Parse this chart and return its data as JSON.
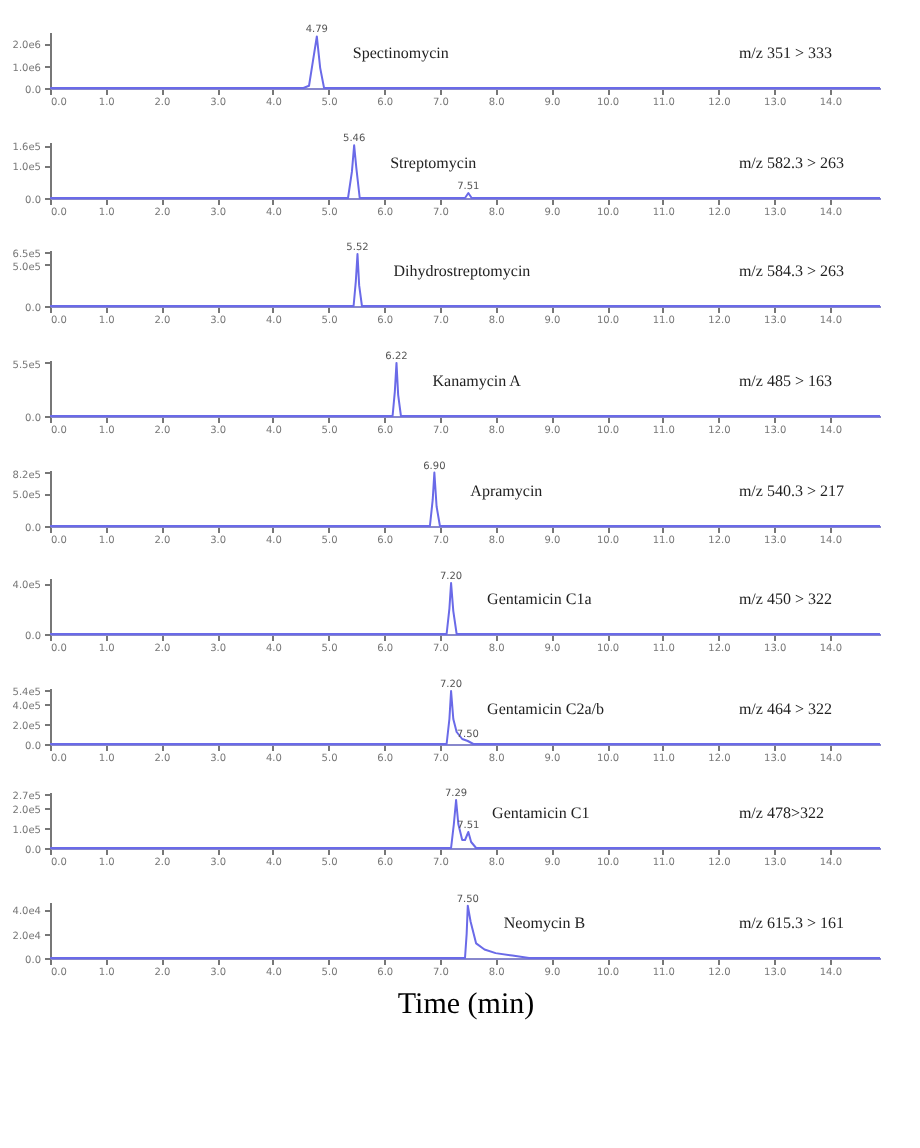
{
  "chart_data": [
    {
      "type": "line",
      "color": "#6a6ae8",
      "x": [
        0,
        4.55,
        4.65,
        4.72,
        4.79,
        4.85,
        4.92,
        14.9
      ],
      "values": [
        0,
        0,
        100000,
        1200000,
        2300000,
        900000,
        0,
        0
      ],
      "xlim": [
        0,
        14.9
      ],
      "xticks": [
        {
          "value": 0,
          "label": "0.0"
        },
        {
          "value": 1,
          "label": "1.0"
        },
        {
          "value": 2,
          "label": "2.0"
        },
        {
          "value": 3,
          "label": "3.0"
        },
        {
          "value": 4,
          "label": "4.0"
        },
        {
          "value": 5,
          "label": "5.0"
        },
        {
          "value": 6,
          "label": "6.0"
        },
        {
          "value": 7,
          "label": "7.0"
        },
        {
          "value": 8,
          "label": "8.0"
        },
        {
          "value": 9,
          "label": "9.0"
        },
        {
          "value": 10,
          "label": "10.0"
        },
        {
          "value": 11,
          "label": "11.0"
        },
        {
          "value": 12,
          "label": "12.0"
        },
        {
          "value": 13,
          "label": "13.0"
        },
        {
          "value": 14,
          "label": "14.0"
        }
      ],
      "ylim": [
        0,
        2500000
      ],
      "yticks": [
        {
          "value": 0,
          "label": "0.0"
        },
        {
          "value": 1000000,
          "label": "1.0e6"
        },
        {
          "value": 2000000,
          "label": "2.0e6"
        }
      ],
      "annotations": [
        "Spectinomycin",
        "m/z 351 > 333",
        {
          "text": "4.79",
          "x": 4.79,
          "y": 2300000
        }
      ]
    },
    {
      "type": "line",
      "color": "#6a6ae8",
      "x": [
        0,
        5.35,
        5.42,
        5.46,
        5.5,
        5.56,
        7.45,
        7.51,
        7.57,
        14.9
      ],
      "values": [
        0,
        0,
        80000,
        160000,
        90000,
        0,
        0,
        15000,
        0,
        0
      ],
      "xlim": [
        0,
        14.9
      ],
      "xticks": [
        {
          "value": 0,
          "label": "0.0"
        },
        {
          "value": 1,
          "label": "1.0"
        },
        {
          "value": 2,
          "label": "2.0"
        },
        {
          "value": 3,
          "label": "3.0"
        },
        {
          "value": 4,
          "label": "4.0"
        },
        {
          "value": 5,
          "label": "5.0"
        },
        {
          "value": 6,
          "label": "6.0"
        },
        {
          "value": 7,
          "label": "7.0"
        },
        {
          "value": 8,
          "label": "8.0"
        },
        {
          "value": 9,
          "label": "9.0"
        },
        {
          "value": 10,
          "label": "10.0"
        },
        {
          "value": 11,
          "label": "11.0"
        },
        {
          "value": 12,
          "label": "12.0"
        },
        {
          "value": 13,
          "label": "13.0"
        },
        {
          "value": 14,
          "label": "14.0"
        }
      ],
      "ylim": [
        0,
        170000
      ],
      "yticks": [
        {
          "value": 0,
          "label": "0.0"
        },
        {
          "value": 100000,
          "label": "1.0e5"
        },
        {
          "value": 160000,
          "label": "1.6e5"
        }
      ],
      "annotations": [
        "Streptomycin",
        "m/z 582.3 > 263",
        {
          "text": "5.46",
          "x": 5.46,
          "y": 160000
        },
        {
          "text": "7.51",
          "x": 7.51,
          "y": 15000
        }
      ]
    },
    {
      "type": "line",
      "color": "#6a6ae8",
      "x": [
        0,
        5.45,
        5.49,
        5.52,
        5.55,
        5.6,
        14.9
      ],
      "values": [
        0,
        0,
        300000,
        630000,
        250000,
        0,
        0
      ],
      "xlim": [
        0,
        14.9
      ],
      "xticks": [
        {
          "value": 0,
          "label": "0.0"
        },
        {
          "value": 1,
          "label": "1.0"
        },
        {
          "value": 2,
          "label": "2.0"
        },
        {
          "value": 3,
          "label": "3.0"
        },
        {
          "value": 4,
          "label": "4.0"
        },
        {
          "value": 5,
          "label": "5.0"
        },
        {
          "value": 6,
          "label": "6.0"
        },
        {
          "value": 7,
          "label": "7.0"
        },
        {
          "value": 8,
          "label": "8.0"
        },
        {
          "value": 9,
          "label": "9.0"
        },
        {
          "value": 10,
          "label": "10.0"
        },
        {
          "value": 11,
          "label": "11.0"
        },
        {
          "value": 12,
          "label": "12.0"
        },
        {
          "value": 13,
          "label": "13.0"
        },
        {
          "value": 14,
          "label": "14.0"
        }
      ],
      "ylim": [
        0,
        680000
      ],
      "yticks": [
        {
          "value": 0,
          "label": "0.0"
        },
        {
          "value": 500000,
          "label": "5.0e5"
        },
        {
          "value": 650000,
          "label": "6.5e5"
        }
      ],
      "annotations": [
        "Dihydrostreptomycin",
        "m/z 584.3 > 263",
        {
          "text": "5.52",
          "x": 5.52,
          "y": 630000
        }
      ]
    },
    {
      "type": "line",
      "color": "#6a6ae8",
      "x": [
        0,
        6.15,
        6.19,
        6.22,
        6.25,
        6.3,
        14.9
      ],
      "values": [
        0,
        0,
        250000,
        550000,
        220000,
        0,
        0
      ],
      "xlim": [
        0,
        14.9
      ],
      "xticks": [
        {
          "value": 0,
          "label": "0.0"
        },
        {
          "value": 1,
          "label": "1.0"
        },
        {
          "value": 2,
          "label": "2.0"
        },
        {
          "value": 3,
          "label": "3.0"
        },
        {
          "value": 4,
          "label": "4.0"
        },
        {
          "value": 5,
          "label": "5.0"
        },
        {
          "value": 6,
          "label": "6.0"
        },
        {
          "value": 7,
          "label": "7.0"
        },
        {
          "value": 8,
          "label": "8.0"
        },
        {
          "value": 9,
          "label": "9.0"
        },
        {
          "value": 10,
          "label": "10.0"
        },
        {
          "value": 11,
          "label": "11.0"
        },
        {
          "value": 12,
          "label": "12.0"
        },
        {
          "value": 13,
          "label": "13.0"
        },
        {
          "value": 14,
          "label": "14.0"
        }
      ],
      "ylim": [
        0,
        580000
      ],
      "yticks": [
        {
          "value": 0,
          "label": "0.0"
        },
        {
          "value": 550000,
          "label": "5.5e5"
        }
      ],
      "annotations": [
        "Kanamycin A",
        "m/z 485 > 163",
        {
          "text": "6.22",
          "x": 6.22,
          "y": 550000
        }
      ]
    },
    {
      "type": "line",
      "color": "#6a6ae8",
      "x": [
        0,
        6.82,
        6.87,
        6.9,
        6.94,
        7.0,
        14.9
      ],
      "values": [
        0,
        0,
        400000,
        820000,
        300000,
        0,
        0
      ],
      "xlim": [
        0,
        14.9
      ],
      "xticks": [
        {
          "value": 0,
          "label": "0.0"
        },
        {
          "value": 1,
          "label": "1.0"
        },
        {
          "value": 2,
          "label": "2.0"
        },
        {
          "value": 3,
          "label": "3.0"
        },
        {
          "value": 4,
          "label": "4.0"
        },
        {
          "value": 5,
          "label": "5.0"
        },
        {
          "value": 6,
          "label": "6.0"
        },
        {
          "value": 7,
          "label": "7.0"
        },
        {
          "value": 8,
          "label": "8.0"
        },
        {
          "value": 9,
          "label": "9.0"
        },
        {
          "value": 10,
          "label": "10.0"
        },
        {
          "value": 11,
          "label": "11.0"
        },
        {
          "value": 12,
          "label": "12.0"
        },
        {
          "value": 13,
          "label": "13.0"
        },
        {
          "value": 14,
          "label": "14.0"
        }
      ],
      "ylim": [
        0,
        860000
      ],
      "yticks": [
        {
          "value": 0,
          "label": "0.0"
        },
        {
          "value": 500000,
          "label": "5.0e5"
        },
        {
          "value": 820000,
          "label": "8.2e5"
        }
      ],
      "annotations": [
        "Apramycin",
        "m/z 540.3 > 217",
        {
          "text": "6.90",
          "x": 6.9,
          "y": 820000
        }
      ]
    },
    {
      "type": "line",
      "color": "#6a6ae8",
      "x": [
        0,
        7.12,
        7.17,
        7.2,
        7.24,
        7.3,
        14.9
      ],
      "values": [
        0,
        0,
        200000,
        400000,
        180000,
        0,
        0
      ],
      "xlim": [
        0,
        14.9
      ],
      "xticks": [
        {
          "value": 0,
          "label": "0.0"
        },
        {
          "value": 1,
          "label": "1.0"
        },
        {
          "value": 2,
          "label": "2.0"
        },
        {
          "value": 3,
          "label": "3.0"
        },
        {
          "value": 4,
          "label": "4.0"
        },
        {
          "value": 5,
          "label": "5.0"
        },
        {
          "value": 6,
          "label": "6.0"
        },
        {
          "value": 7,
          "label": "7.0"
        },
        {
          "value": 8,
          "label": "8.0"
        },
        {
          "value": 9,
          "label": "9.0"
        },
        {
          "value": 10,
          "label": "10.0"
        },
        {
          "value": 11,
          "label": "11.0"
        },
        {
          "value": 12,
          "label": "12.0"
        },
        {
          "value": 13,
          "label": "13.0"
        },
        {
          "value": 14,
          "label": "14.0"
        }
      ],
      "ylim": [
        0,
        440000
      ],
      "yticks": [
        {
          "value": 0,
          "label": "0.0"
        },
        {
          "value": 400000,
          "label": "4.0e5"
        }
      ],
      "annotations": [
        "Gentamicin C1a",
        "m/z 450 > 322",
        {
          "text": "7.20",
          "x": 7.2,
          "y": 400000
        }
      ]
    },
    {
      "type": "line",
      "color": "#6a6ae8",
      "x": [
        0,
        7.12,
        7.17,
        7.2,
        7.24,
        7.3,
        7.4,
        7.5,
        7.6,
        14.9
      ],
      "values": [
        0,
        0,
        250000,
        530000,
        250000,
        120000,
        50000,
        30000,
        0,
        0
      ],
      "xlim": [
        0,
        14.9
      ],
      "xticks": [
        {
          "value": 0,
          "label": "0.0"
        },
        {
          "value": 1,
          "label": "1.0"
        },
        {
          "value": 2,
          "label": "2.0"
        },
        {
          "value": 3,
          "label": "3.0"
        },
        {
          "value": 4,
          "label": "4.0"
        },
        {
          "value": 5,
          "label": "5.0"
        },
        {
          "value": 6,
          "label": "6.0"
        },
        {
          "value": 7,
          "label": "7.0"
        },
        {
          "value": 8,
          "label": "8.0"
        },
        {
          "value": 9,
          "label": "9.0"
        },
        {
          "value": 10,
          "label": "10.0"
        },
        {
          "value": 11,
          "label": "11.0"
        },
        {
          "value": 12,
          "label": "12.0"
        },
        {
          "value": 13,
          "label": "13.0"
        },
        {
          "value": 14,
          "label": "14.0"
        }
      ],
      "ylim": [
        0,
        560000
      ],
      "yticks": [
        {
          "value": 0,
          "label": "0.0"
        },
        {
          "value": 200000,
          "label": "2.0e5"
        },
        {
          "value": 400000,
          "label": "4.0e5"
        },
        {
          "value": 540000,
          "label": "5.4e5"
        }
      ],
      "annotations": [
        "Gentamicin C2a/b",
        "m/z 464 > 322",
        {
          "text": "7.20",
          "x": 7.2,
          "y": 530000
        },
        {
          "text": "7.50",
          "x": 7.5,
          "y": 30000
        }
      ]
    },
    {
      "type": "line",
      "color": "#6a6ae8",
      "x": [
        0,
        7.2,
        7.25,
        7.29,
        7.33,
        7.4,
        7.45,
        7.51,
        7.56,
        7.65,
        14.9
      ],
      "values": [
        0,
        0,
        120000,
        240000,
        120000,
        40000,
        40000,
        80000,
        30000,
        0,
        0
      ],
      "xlim": [
        0,
        14.9
      ],
      "xticks": [
        {
          "value": 0,
          "label": "0.0"
        },
        {
          "value": 1,
          "label": "1.0"
        },
        {
          "value": 2,
          "label": "2.0"
        },
        {
          "value": 3,
          "label": "3.0"
        },
        {
          "value": 4,
          "label": "4.0"
        },
        {
          "value": 5,
          "label": "5.0"
        },
        {
          "value": 6,
          "label": "6.0"
        },
        {
          "value": 7,
          "label": "7.0"
        },
        {
          "value": 8,
          "label": "8.0"
        },
        {
          "value": 9,
          "label": "9.0"
        },
        {
          "value": 10,
          "label": "10.0"
        },
        {
          "value": 11,
          "label": "11.0"
        },
        {
          "value": 12,
          "label": "12.0"
        },
        {
          "value": 13,
          "label": "13.0"
        },
        {
          "value": 14,
          "label": "14.0"
        }
      ],
      "ylim": [
        0,
        280000
      ],
      "yticks": [
        {
          "value": 0,
          "label": "0.0"
        },
        {
          "value": 100000,
          "label": "1.0e5"
        },
        {
          "value": 200000,
          "label": "2.0e5"
        },
        {
          "value": 270000,
          "label": "2.7e5"
        }
      ],
      "annotations": [
        "Gentamicin C1",
        "m/z 478>322",
        {
          "text": "7.29",
          "x": 7.29,
          "y": 240000
        },
        {
          "text": "7.51",
          "x": 7.51,
          "y": 80000
        }
      ]
    },
    {
      "type": "line",
      "color": "#6a6ae8",
      "x": [
        0,
        7.45,
        7.48,
        7.5,
        7.55,
        7.65,
        7.8,
        8.0,
        8.3,
        8.6,
        14.9
      ],
      "values": [
        0,
        0,
        20000,
        43000,
        30000,
        12000,
        7000,
        4000,
        2000,
        0,
        0
      ],
      "xlim": [
        0,
        14.9
      ],
      "xticks": [
        {
          "value": 0,
          "label": "0.0"
        },
        {
          "value": 1,
          "label": "1.0"
        },
        {
          "value": 2,
          "label": "2.0"
        },
        {
          "value": 3,
          "label": "3.0"
        },
        {
          "value": 4,
          "label": "4.0"
        },
        {
          "value": 5,
          "label": "5.0"
        },
        {
          "value": 6,
          "label": "6.0"
        },
        {
          "value": 7,
          "label": "7.0"
        },
        {
          "value": 8,
          "label": "8.0"
        },
        {
          "value": 9,
          "label": "9.0"
        },
        {
          "value": 10,
          "label": "10.0"
        },
        {
          "value": 11,
          "label": "11.0"
        },
        {
          "value": 12,
          "label": "12.0"
        },
        {
          "value": 13,
          "label": "13.0"
        },
        {
          "value": 14,
          "label": "14.0"
        }
      ],
      "ylim": [
        0,
        46000
      ],
      "yticks": [
        {
          "value": 0,
          "label": "0.0"
        },
        {
          "value": 20000,
          "label": "2.0e4"
        },
        {
          "value": 40000,
          "label": "4.0e4"
        }
      ],
      "annotations": [
        "Neomycin B",
        "m/z 615.3 > 161",
        {
          "text": "7.50",
          "x": 7.5,
          "y": 43000
        }
      ],
      "xlabel": "Time (min)"
    }
  ]
}
